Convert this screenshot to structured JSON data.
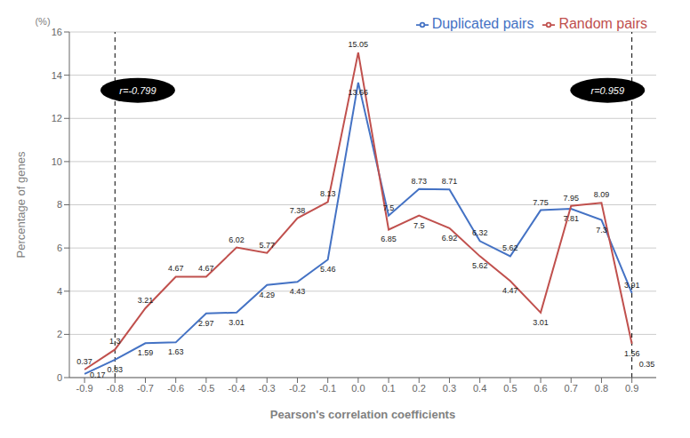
{
  "chart_data": {
    "type": "line",
    "x": [
      -0.9,
      -0.8,
      -0.7,
      -0.6,
      -0.5,
      -0.4,
      -0.3,
      -0.2,
      -0.1,
      0.0,
      0.1,
      0.2,
      0.3,
      0.4,
      0.5,
      0.6,
      0.7,
      0.8,
      0.9
    ],
    "series": [
      {
        "name": "Duplicated pairs",
        "color": "#4472C4",
        "values": [
          0.17,
          0.83,
          1.59,
          1.63,
          2.97,
          3.01,
          4.29,
          4.43,
          5.46,
          13.66,
          7.5,
          8.73,
          8.71,
          6.32,
          5.62,
          7.75,
          7.81,
          7.3,
          3.91
        ]
      },
      {
        "name": "Random pairs",
        "color": "#C0504D",
        "values": [
          0.37,
          1.3,
          3.21,
          4.67,
          4.67,
          6.02,
          5.77,
          7.38,
          8.13,
          15.05,
          6.85,
          7.5,
          6.92,
          5.62,
          4.47,
          3.01,
          7.95,
          8.09,
          1.56
        ]
      }
    ],
    "xlabel": "Pearson's correlation coefficients",
    "ylabel": "Percentage of genes",
    "y_unit": "(%)",
    "xlim": [
      -0.95,
      0.98
    ],
    "xticks": [
      -0.9,
      -0.8,
      -0.7,
      -0.6,
      -0.5,
      -0.4,
      -0.3,
      -0.2,
      -0.1,
      {
        "value": 0,
        "label": "0.0"
      },
      0.1,
      0.2,
      0.3,
      0.4,
      0.5,
      0.6,
      0.7,
      0.8,
      0.9
    ],
    "ylim": [
      0,
      16
    ],
    "yticks": [
      0,
      2,
      4,
      6,
      8,
      10,
      12,
      14,
      16
    ],
    "vlines": [
      -0.8,
      0.9
    ],
    "callouts": [
      {
        "text": "r=-0.799",
        "x": -0.725,
        "y": 13.3
      },
      {
        "text": "r=0.959",
        "x": 0.82,
        "y": 13.3
      }
    ],
    "annotations": [
      {
        "text": "0.35",
        "x": 0.9,
        "y": 1.56
      }
    ],
    "grid": true,
    "legend": "upper right",
    "data_labels": true
  }
}
